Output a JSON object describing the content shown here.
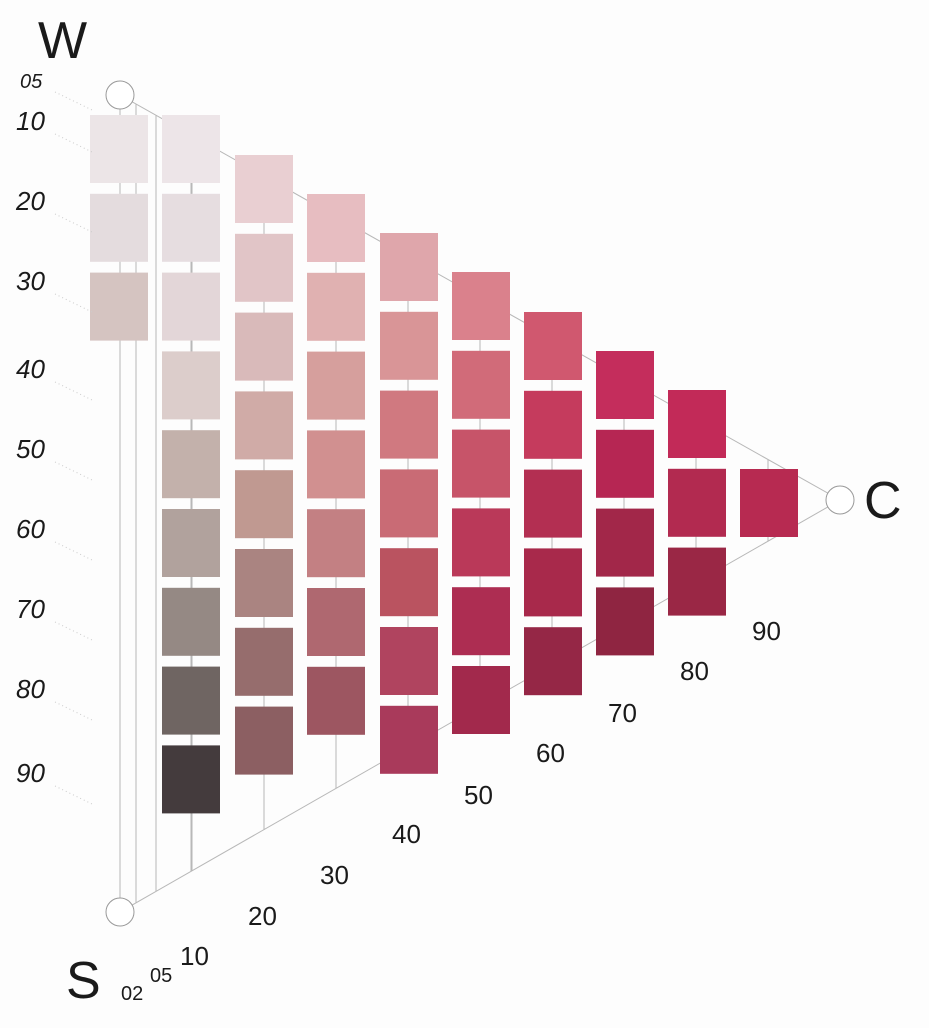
{
  "corners": {
    "white": "W",
    "black": "S",
    "chromatic": "C"
  },
  "blackness_labels": [
    "05",
    "10",
    "20",
    "30",
    "40",
    "50",
    "60",
    "70",
    "80",
    "90"
  ],
  "chromaticness_labels": [
    "02",
    "05",
    "10",
    "20",
    "30",
    "40",
    "50",
    "60",
    "70",
    "80",
    "90"
  ],
  "swatch_columns": [
    [
      "#ece5e7",
      "#e4dcde",
      "#d5c4c1"
    ],
    [
      "#ede5e8",
      "#e6dde0",
      "#e3d6d8",
      "#dccdcb",
      "#c3b1ab",
      "#b1a29d",
      "#958984",
      "#6f6562",
      "#443b3d"
    ],
    [
      "#e9cfd2",
      "#e1c5c7",
      "#d9baba",
      "#d0aba7",
      "#c09991",
      "#aa8481",
      "#966d6d",
      "#8c5f62"
    ],
    [
      "#e7bdc1",
      "#e0b1b1",
      "#d69f9d",
      "#d19090",
      "#c38083",
      "#af6870",
      "#9d5661"
    ],
    [
      "#dfa6ab",
      "#d99597",
      "#d07980",
      "#c96b75",
      "#ba5360",
      "#b0445f",
      "#a93a5b"
    ],
    [
      "#da818c",
      "#d16b79",
      "#c75469",
      "#ba3959",
      "#ad2d52",
      "#a2294c"
    ],
    [
      "#d0586f",
      "#c53b5d",
      "#b32f52",
      "#a8294b",
      "#952746"
    ],
    [
      "#c42d5c",
      "#b62653",
      "#a22749",
      "#8f2541"
    ],
    [
      "#c22a58",
      "#b22a50",
      "#9a2745"
    ],
    [
      "#b72a51"
    ]
  ]
}
